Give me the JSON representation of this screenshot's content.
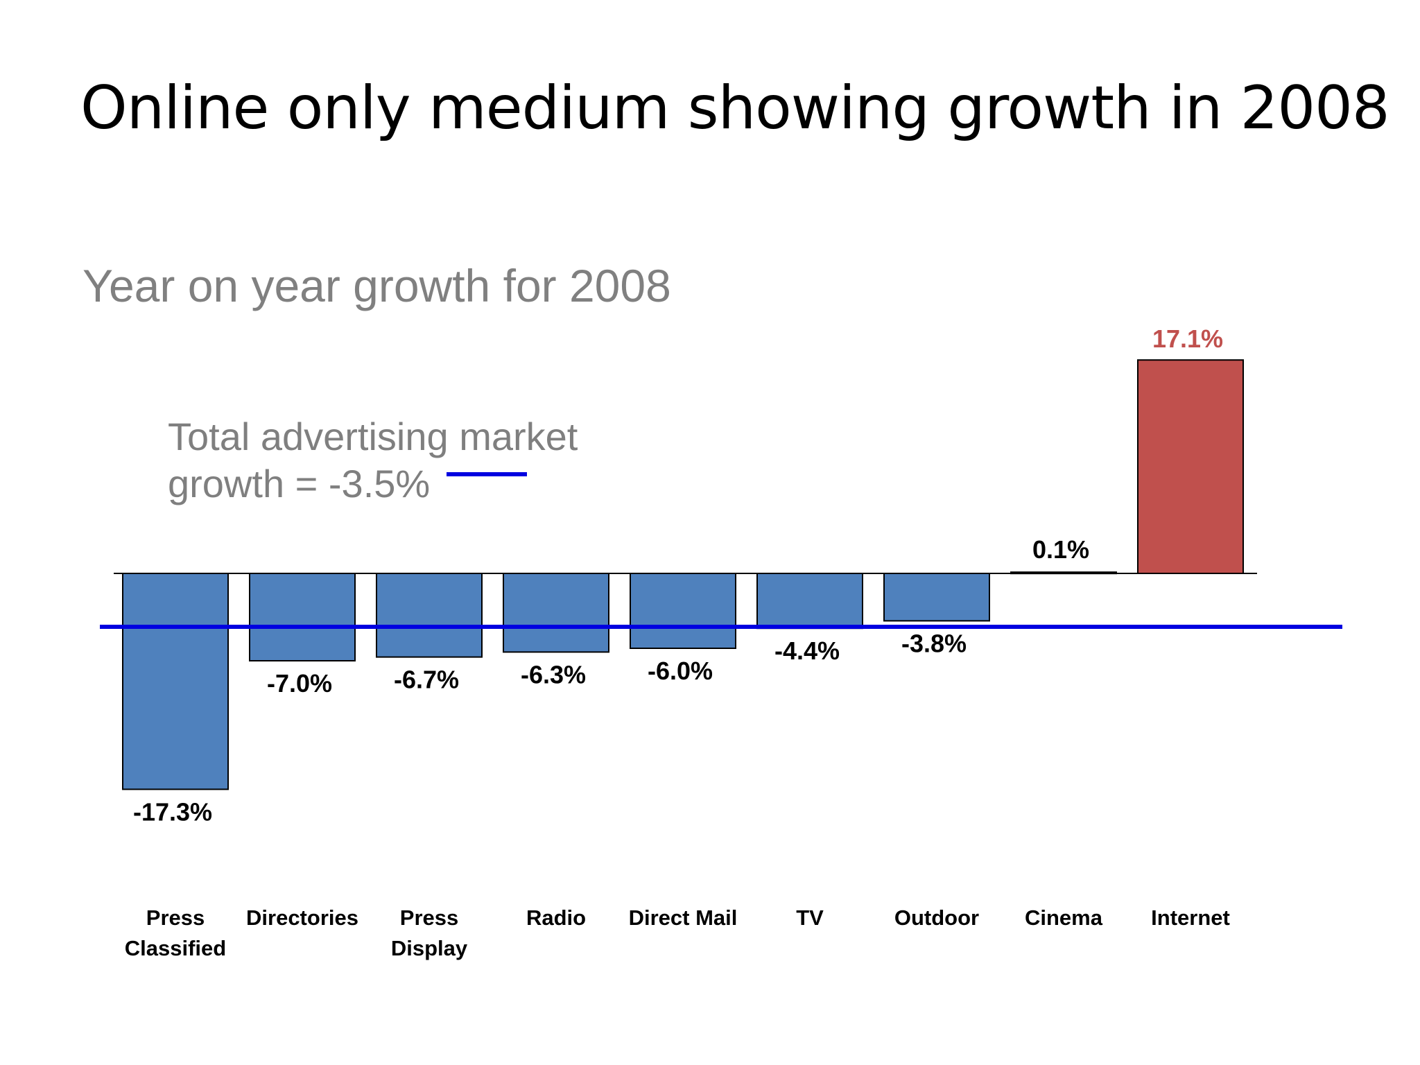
{
  "slide": {
    "title": "Online only medium showing growth in 2008"
  },
  "chart_data": {
    "type": "bar",
    "title": "Year on year growth for 2008",
    "categories": [
      [
        "Press",
        "Classified"
      ],
      [
        "Directories"
      ],
      [
        "Press",
        "Display"
      ],
      [
        "Radio"
      ],
      [
        "Direct Mail"
      ],
      [
        "TV"
      ],
      [
        "Outdoor"
      ],
      [
        "Cinema"
      ],
      [
        "Internet"
      ]
    ],
    "values": [
      -17.3,
      -7.0,
      -6.7,
      -6.3,
      -6.0,
      -4.4,
      -3.8,
      0.1,
      17.1
    ],
    "value_labels": [
      "-17.3%",
      "-7.0%",
      "-6.7%",
      "-6.3%",
      "-6.0%",
      "-4.4%",
      "-3.8%",
      "0.1%",
      "17.1%"
    ],
    "units": "%",
    "xlabel": "",
    "ylabel": "",
    "ylim": [
      -17.3,
      17.1
    ],
    "grid": false,
    "reference_line": {
      "value": -3.5,
      "label_line1": "Total advertising market",
      "label_line2": "growth  = -3.5%",
      "color": "#0000E0"
    },
    "colors": {
      "negative": "#4F81BD",
      "positive_highlight": "#C0504D",
      "highlight_label": "#C0504D",
      "label": "#000000"
    }
  }
}
